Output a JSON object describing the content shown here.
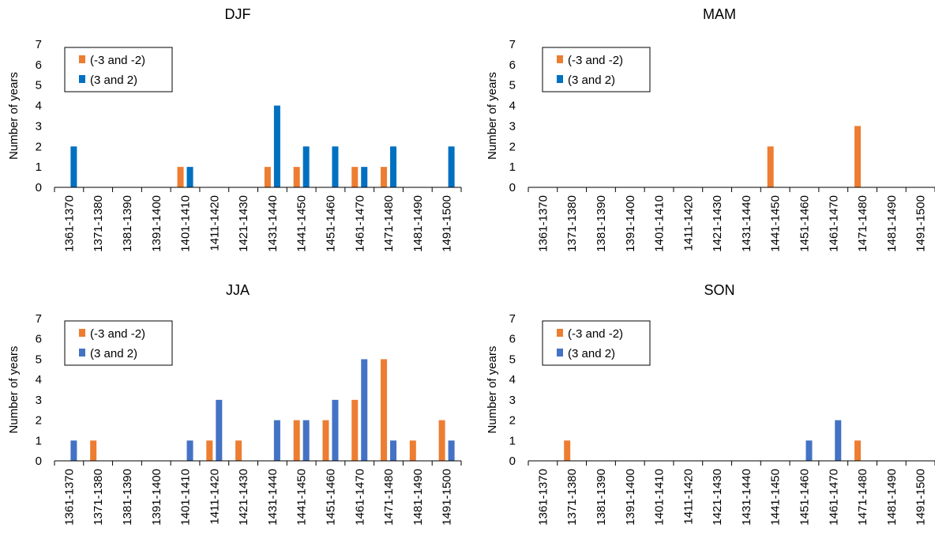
{
  "colors": {
    "negative": "#ED7D31",
    "positive_top": "#0070C0",
    "positive_bottom": "#4472C4",
    "axis": "#000000"
  },
  "chart_data": [
    {
      "type": "bar",
      "title": "DJF",
      "ylabel": "Number of years",
      "ylim": [
        0,
        7
      ],
      "yticks": [
        "0",
        "1",
        "2",
        "3",
        "4",
        "5",
        "6",
        "7"
      ],
      "legend_position": "top-left",
      "categories": [
        "1361-1370",
        "1371-1380",
        "1381-1390",
        "1391-1400",
        "1401-1410",
        "1411-1420",
        "1421-1430",
        "1431-1440",
        "1441-1450",
        "1451-1460",
        "1461-1470",
        "1471-1480",
        "1481-1490",
        "1491-1500"
      ],
      "series": [
        {
          "name": "(-3 and -2)",
          "values": [
            0,
            0,
            0,
            0,
            1,
            0,
            0,
            1,
            1,
            0,
            1,
            1,
            0,
            0
          ]
        },
        {
          "name": "(3 and 2)",
          "values": [
            2,
            0,
            0,
            0,
            1,
            0,
            0,
            4,
            2,
            2,
            1,
            2,
            0,
            2
          ]
        }
      ]
    },
    {
      "type": "bar",
      "title": "MAM",
      "ylabel": "Number of years",
      "ylim": [
        0,
        7
      ],
      "yticks": [
        "0",
        "1",
        "2",
        "3",
        "4",
        "5",
        "6",
        "7"
      ],
      "legend_position": "top-left",
      "categories": [
        "1361-1370",
        "1371-1380",
        "1381-1390",
        "1391-1400",
        "1401-1410",
        "1411-1420",
        "1421-1430",
        "1431-1440",
        "1441-1450",
        "1451-1460",
        "1461-1470",
        "1471-1480",
        "1481-1490",
        "1491-1500"
      ],
      "series": [
        {
          "name": "(-3 and -2)",
          "values": [
            0,
            0,
            0,
            0,
            0,
            0,
            0,
            0,
            2,
            0,
            0,
            3,
            0,
            0
          ]
        },
        {
          "name": "(3 and 2)",
          "values": [
            0,
            0,
            0,
            0,
            0,
            0,
            0,
            0,
            0,
            0,
            0,
            0,
            0,
            0
          ]
        }
      ]
    },
    {
      "type": "bar",
      "title": "JJA",
      "ylabel": "Number of years",
      "ylim": [
        0,
        7
      ],
      "yticks": [
        "0",
        "1",
        "2",
        "3",
        "4",
        "5",
        "6",
        "7"
      ],
      "legend_position": "top-left",
      "categories": [
        "1361-1370",
        "1371-1380",
        "1381-1390",
        "1391-1400",
        "1401-1410",
        "1411-1420",
        "1421-1430",
        "1431-1440",
        "1441-1450",
        "1451-1460",
        "1461-1470",
        "1471-1480",
        "1481-1490",
        "1491-1500"
      ],
      "series": [
        {
          "name": "(-3 and -2)",
          "values": [
            0,
            1,
            0,
            0,
            0,
            1,
            1,
            0,
            2,
            2,
            3,
            5,
            1,
            2
          ]
        },
        {
          "name": "(3 and 2)",
          "values": [
            1,
            0,
            0,
            0,
            1,
            3,
            0,
            2,
            2,
            3,
            5,
            1,
            0,
            1
          ]
        }
      ]
    },
    {
      "type": "bar",
      "title": "SON",
      "ylabel": "Number of years",
      "ylim": [
        0,
        7
      ],
      "yticks": [
        "0",
        "1",
        "2",
        "3",
        "4",
        "5",
        "6",
        "7"
      ],
      "legend_position": "top-left",
      "categories": [
        "1361-1370",
        "1371-1380",
        "1381-1390",
        "1391-1400",
        "1401-1410",
        "1411-1420",
        "1421-1430",
        "1431-1440",
        "1441-1450",
        "1451-1460",
        "1461-1470",
        "1471-1480",
        "1481-1490",
        "1491-1500"
      ],
      "series": [
        {
          "name": "(-3 and -2)",
          "values": [
            0,
            1,
            0,
            0,
            0,
            0,
            0,
            0,
            0,
            0,
            0,
            1,
            0,
            0
          ]
        },
        {
          "name": "(3 and 2)",
          "values": [
            0,
            0,
            0,
            0,
            0,
            0,
            0,
            0,
            0,
            1,
            2,
            0,
            0,
            0
          ]
        }
      ]
    }
  ]
}
